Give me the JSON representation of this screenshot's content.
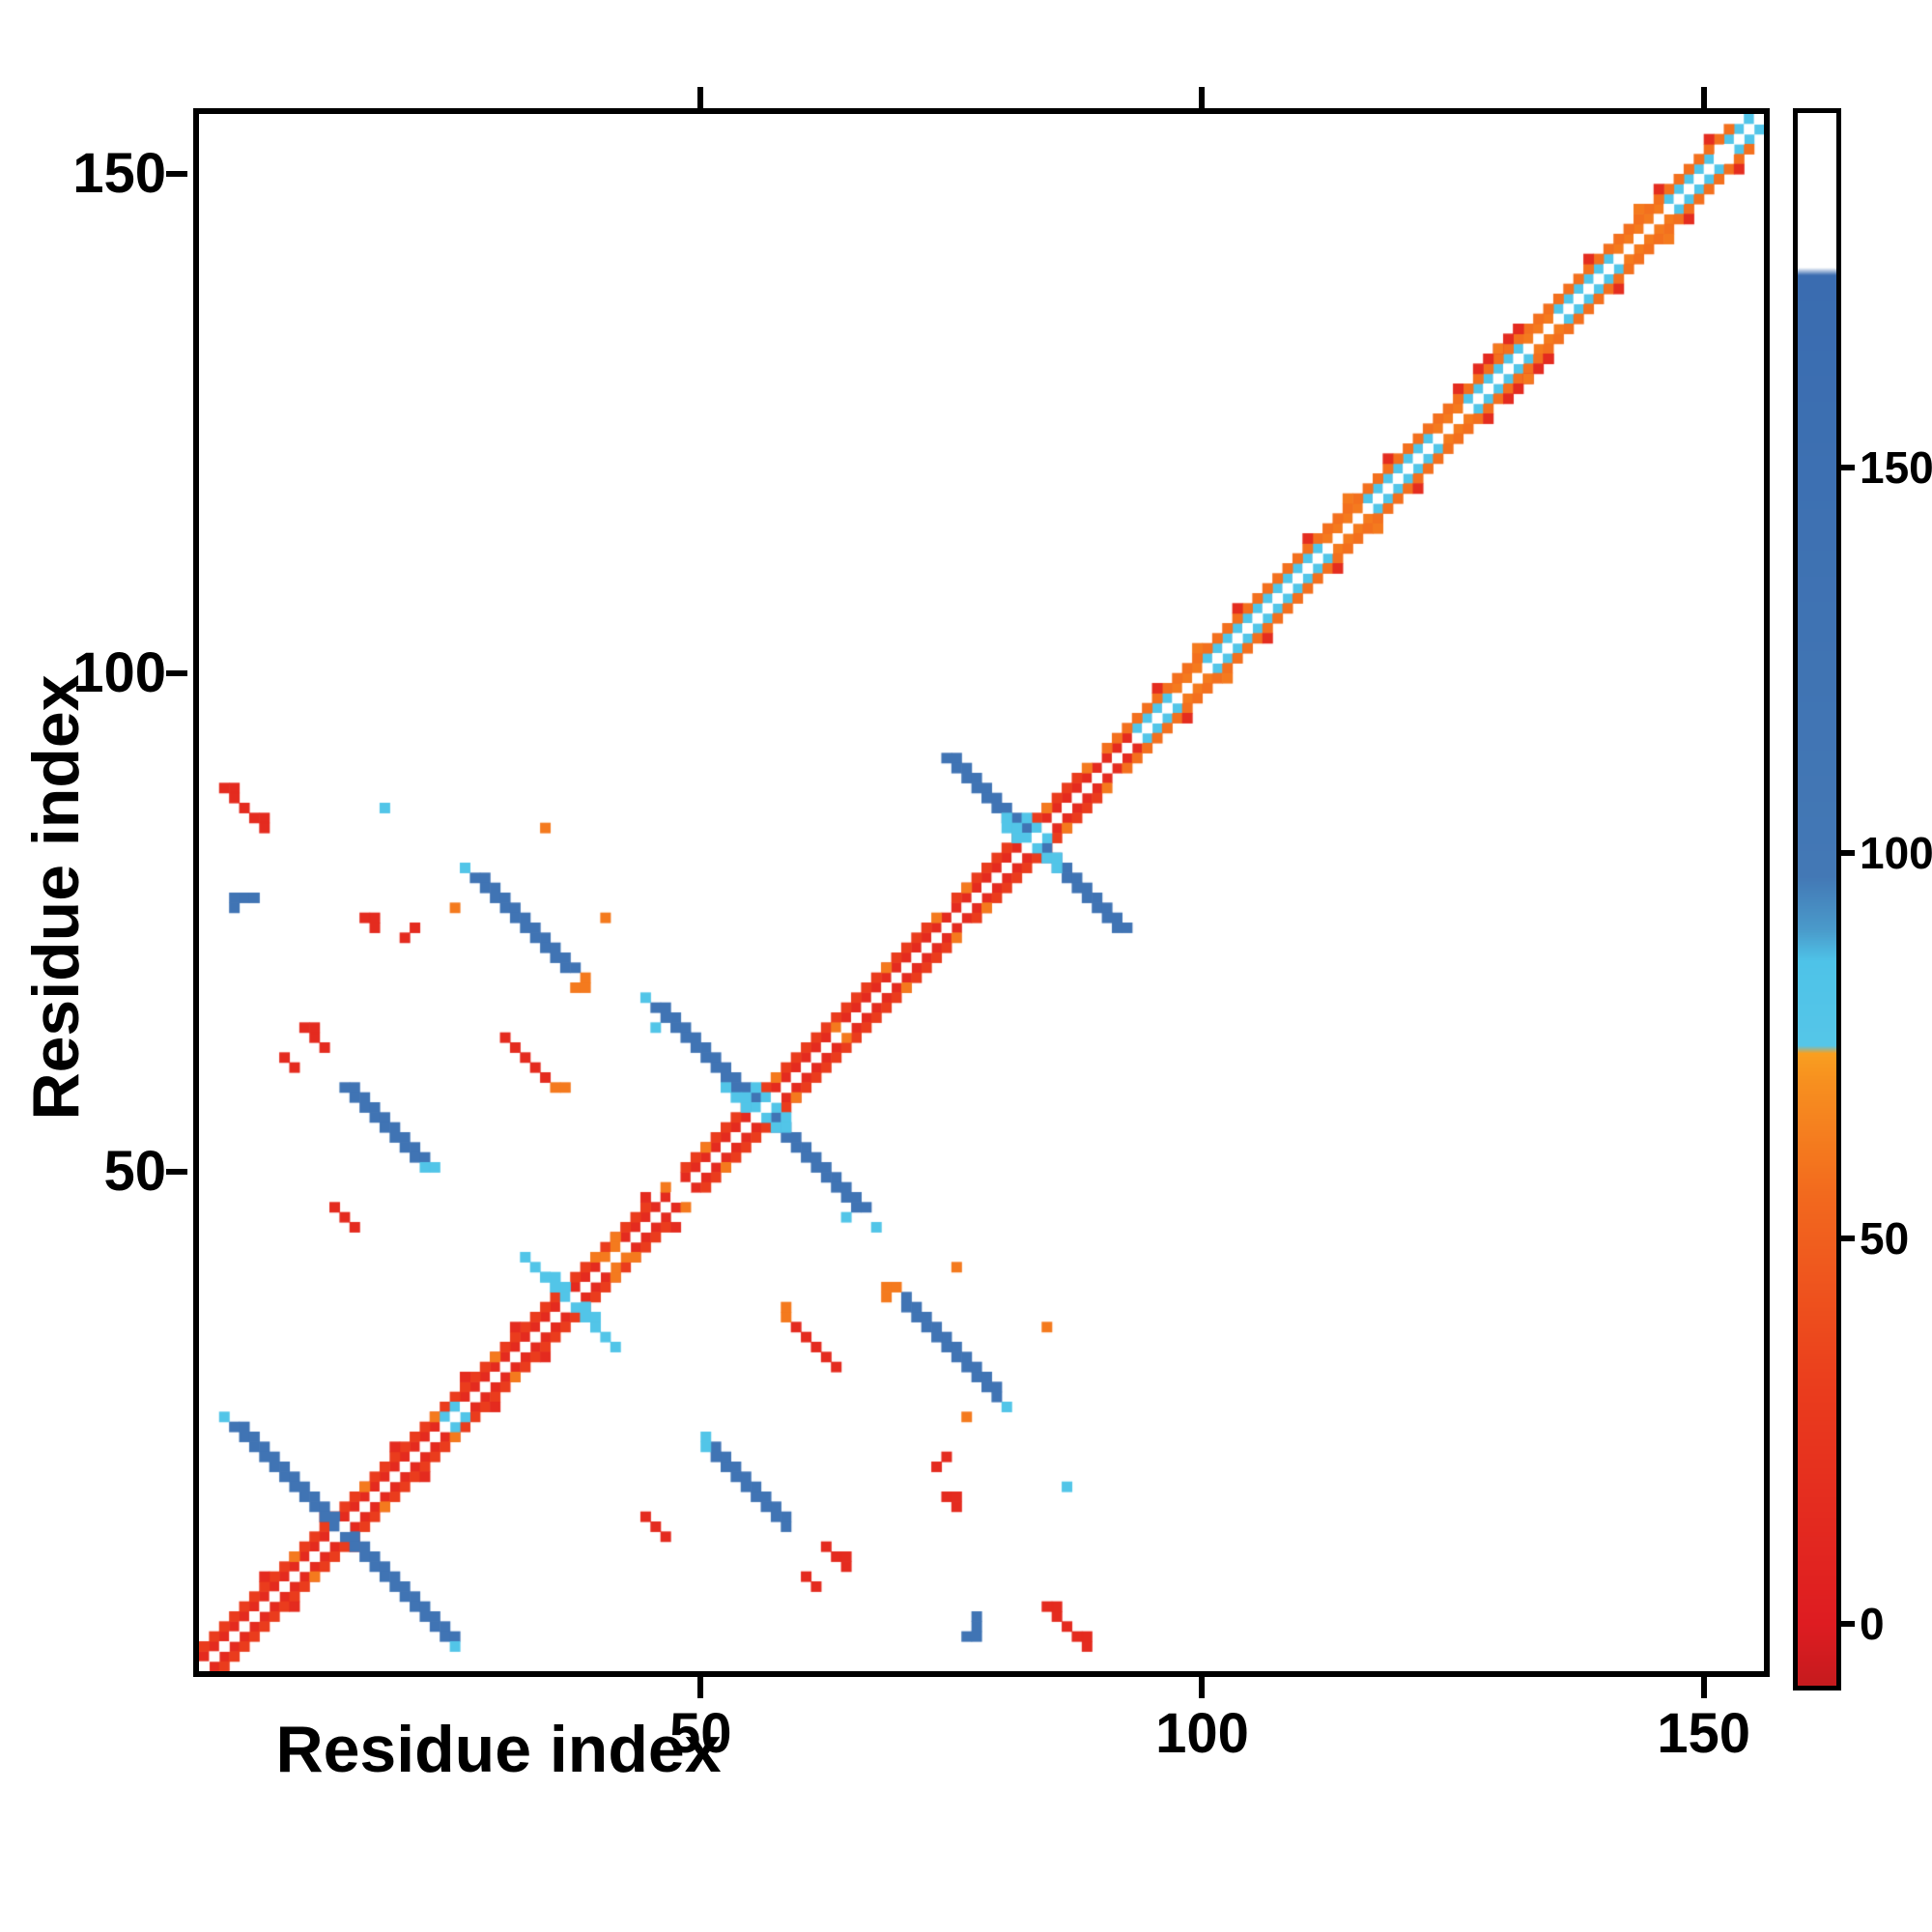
{
  "chart_data": {
    "type": "heatmap",
    "title": "",
    "xlabel": "Residue index",
    "ylabel": "Residue index",
    "n_residues": 156,
    "xlim": [
      0,
      156
    ],
    "ylim": [
      0,
      156
    ],
    "grid": false,
    "x_tick_values": [
      50,
      100,
      150
    ],
    "x_tick_labels": [
      "50",
      "100",
      "150"
    ],
    "y_tick_values": [
      50,
      100,
      150
    ],
    "y_tick_labels": [
      "50",
      "100",
      "150"
    ],
    "colorbar": {
      "position": "right",
      "tick_values": [
        0,
        50,
        100,
        150
      ],
      "tick_labels": [
        "0",
        "50",
        "100",
        "150"
      ],
      "vmin": -8,
      "vmax": 196
    },
    "colormap_stops": [
      [
        -8,
        "#c61b1e"
      ],
      [
        0,
        "#de1c21"
      ],
      [
        30,
        "#ea3c1d"
      ],
      [
        55,
        "#f2681e"
      ],
      [
        70,
        "#f78f1f"
      ],
      [
        74,
        "#f99f20"
      ],
      [
        75,
        "#55c6e8"
      ],
      [
        86,
        "#4ec3e8"
      ],
      [
        90,
        "#4a9bcb"
      ],
      [
        97,
        "#4378b5"
      ],
      [
        175,
        "#3a6cb0"
      ],
      [
        176,
        "#ffffff"
      ],
      [
        196,
        "#ffffff"
      ]
    ],
    "features": [
      {
        "kind": "seg",
        "x": 0,
        "y": 1,
        "dx": 1,
        "dy": 1,
        "n": 47,
        "t": 1,
        "v": 14,
        "mirror": true
      },
      {
        "kind": "seg",
        "x": 0,
        "y": 2,
        "dx": 1,
        "dy": 1,
        "n": 45,
        "t": 1,
        "v": 30,
        "mirror": true
      },
      {
        "kind": "cells",
        "v": 14,
        "mirror": true,
        "pts": [
          [
            6,
            9
          ],
          [
            12,
            15
          ],
          [
            19,
            22
          ],
          [
            26,
            29
          ],
          [
            31,
            34
          ],
          [
            44,
            47
          ]
        ]
      },
      {
        "kind": "cells",
        "v": 62,
        "mirror": true,
        "pts": [
          [
            9,
            11
          ],
          [
            16,
            18
          ],
          [
            23,
            25
          ],
          [
            29,
            31
          ],
          [
            41,
            43
          ],
          [
            46,
            48
          ]
        ]
      },
      {
        "kind": "seg",
        "x": 3,
        "y": 24,
        "dx": 1,
        "dy": -1,
        "n": 22,
        "t": 2,
        "v": 120,
        "mirror": false
      },
      {
        "kind": "cells",
        "v": 80,
        "mirror": true,
        "pts": [
          [
            2,
            25
          ],
          [
            24,
            25
          ],
          [
            25,
            26
          ]
        ]
      },
      {
        "kind": "seg",
        "x": 48,
        "y": 49,
        "dx": 1,
        "dy": 1,
        "n": 27,
        "t": 1,
        "v": 14,
        "mirror": true
      },
      {
        "kind": "seg",
        "x": 48,
        "y": 50,
        "dx": 1,
        "dy": 1,
        "n": 25,
        "t": 1,
        "v": 30,
        "mirror": true
      },
      {
        "kind": "cells",
        "v": 62,
        "mirror": true,
        "pts": [
          [
            50,
            52
          ],
          [
            57,
            59
          ],
          [
            63,
            64
          ],
          [
            68,
            70
          ],
          [
            73,
            75
          ]
        ]
      },
      {
        "kind": "seg",
        "x": 45,
        "y": 66,
        "dx": 1,
        "dy": -1,
        "n": 21,
        "t": 2,
        "v": 120,
        "mirror": false
      },
      {
        "kind": "cells",
        "v": 80,
        "mirror": false,
        "pts": [
          [
            53,
            57
          ],
          [
            54,
            56
          ],
          [
            54,
            57
          ],
          [
            55,
            56
          ],
          [
            55,
            58
          ],
          [
            56,
            57
          ],
          [
            56,
            55
          ],
          [
            57,
            56
          ],
          [
            52,
            58
          ],
          [
            58,
            55
          ],
          [
            57,
            54
          ],
          [
            58,
            54
          ]
        ]
      },
      {
        "kind": "cells",
        "v": 80,
        "mirror": true,
        "pts": [
          [
            44,
            67
          ],
          [
            64,
            45
          ]
        ]
      },
      {
        "kind": "cells",
        "v": 80,
        "mirror": true,
        "pts": [
          [
            34,
            39
          ],
          [
            35,
            38
          ],
          [
            35,
            39
          ],
          [
            36,
            38
          ],
          [
            36,
            37
          ],
          [
            37,
            36
          ],
          [
            38,
            36
          ],
          [
            38,
            35
          ],
          [
            39,
            34
          ],
          [
            40,
            33
          ],
          [
            41,
            32
          ]
        ]
      },
      {
        "kind": "cells",
        "v": 62,
        "mirror": true,
        "pts": [
          [
            39,
            41
          ],
          [
            40,
            41
          ],
          [
            41,
            42
          ]
        ]
      },
      {
        "kind": "seg",
        "x": 75,
        "y": 76,
        "dx": 1,
        "dy": 1,
        "n": 15,
        "t": 1,
        "v": 14,
        "mirror": true
      },
      {
        "kind": "seg",
        "x": 75,
        "y": 77,
        "dx": 1,
        "dy": 1,
        "n": 13,
        "t": 1,
        "v": 30,
        "mirror": true
      },
      {
        "kind": "cells",
        "v": 62,
        "mirror": true,
        "pts": [
          [
            76,
            78
          ],
          [
            84,
            86
          ],
          [
            88,
            90
          ]
        ]
      },
      {
        "kind": "seg",
        "x": 74,
        "y": 91,
        "dx": 1,
        "dy": -1,
        "n": 18,
        "t": 2,
        "v": 120,
        "mirror": false
      },
      {
        "kind": "cells",
        "v": 80,
        "mirror": false,
        "pts": [
          [
            80,
            84
          ],
          [
            81,
            83
          ],
          [
            81,
            84
          ],
          [
            82,
            83
          ],
          [
            82,
            85
          ],
          [
            83,
            82
          ],
          [
            83,
            84
          ],
          [
            84,
            81
          ],
          [
            84,
            83
          ],
          [
            85,
            80
          ],
          [
            80,
            85
          ],
          [
            85,
            81
          ]
        ]
      },
      {
        "kind": "cells",
        "v": 14,
        "mirror": true,
        "pts": [
          [
            90,
            91
          ],
          [
            91,
            92
          ],
          [
            92,
            93
          ]
        ]
      },
      {
        "kind": "seg",
        "x": 93,
        "y": 94,
        "dx": 1,
        "dy": 1,
        "n": 4,
        "t": 1,
        "v": 80,
        "mirror": true
      },
      {
        "kind": "seg",
        "x": 100,
        "y": 101,
        "dx": 1,
        "dy": 1,
        "n": 12,
        "t": 1,
        "v": 80,
        "mirror": true
      },
      {
        "kind": "seg",
        "x": 116,
        "y": 117,
        "dx": 1,
        "dy": 1,
        "n": 7,
        "t": 1,
        "v": 80,
        "mirror": true
      },
      {
        "kind": "seg",
        "x": 126,
        "y": 127,
        "dx": 1,
        "dy": 1,
        "n": 6,
        "t": 1,
        "v": 80,
        "mirror": true
      },
      {
        "kind": "seg",
        "x": 135,
        "y": 136,
        "dx": 1,
        "dy": 1,
        "n": 7,
        "t": 1,
        "v": 80,
        "mirror": true
      },
      {
        "kind": "seg",
        "x": 146,
        "y": 147,
        "dx": 1,
        "dy": 1,
        "n": 5,
        "t": 1,
        "v": 80,
        "mirror": true
      },
      {
        "kind": "seg",
        "x": 152,
        "y": 153,
        "dx": 1,
        "dy": 1,
        "n": 3,
        "t": 1,
        "v": 80,
        "mirror": true
      },
      {
        "kind": "seg",
        "x": 97,
        "y": 98,
        "dx": 1,
        "dy": 1,
        "n": 3,
        "t": 1,
        "v": 62,
        "mirror": true
      },
      {
        "kind": "seg",
        "x": 112,
        "y": 113,
        "dx": 1,
        "dy": 1,
        "n": 4,
        "t": 1,
        "v": 62,
        "mirror": true
      },
      {
        "kind": "seg",
        "x": 123,
        "y": 124,
        "dx": 1,
        "dy": 1,
        "n": 3,
        "t": 1,
        "v": 62,
        "mirror": true
      },
      {
        "kind": "seg",
        "x": 132,
        "y": 133,
        "dx": 1,
        "dy": 1,
        "n": 3,
        "t": 1,
        "v": 62,
        "mirror": true
      },
      {
        "kind": "seg",
        "x": 141,
        "y": 142,
        "dx": 1,
        "dy": 1,
        "n": 5,
        "t": 1,
        "v": 62,
        "mirror": true
      },
      {
        "kind": "seg",
        "x": 90,
        "y": 92,
        "dx": 1,
        "dy": 1,
        "n": 63,
        "t": 1,
        "v": 58,
        "mirror": true
      },
      {
        "kind": "cells",
        "v": 16,
        "mirror": true,
        "pts": [
          [
            95,
            98
          ],
          [
            103,
            106
          ],
          [
            110,
            113
          ],
          [
            118,
            121
          ],
          [
            125,
            128
          ],
          [
            131,
            134
          ],
          [
            138,
            141
          ],
          [
            145,
            148
          ],
          [
            150,
            153
          ]
        ]
      },
      {
        "kind": "seg",
        "x": 127,
        "y": 130,
        "dx": 1,
        "dy": 1,
        "n": 5,
        "t": 1,
        "v": 14,
        "mirror": true
      },
      {
        "kind": "cells",
        "v": 62,
        "mirror": true,
        "pts": [
          [
            99,
            102
          ],
          [
            114,
            117
          ],
          [
            129,
            132
          ],
          [
            143,
            146
          ]
        ]
      },
      {
        "kind": "seg",
        "x": 27,
        "y": 79,
        "dx": 1,
        "dy": -1,
        "n": 10,
        "t": 2,
        "v": 120,
        "mirror": true
      },
      {
        "kind": "cells",
        "v": 62,
        "mirror": true,
        "pts": [
          [
            37,
            68
          ],
          [
            38,
            68
          ],
          [
            38,
            69
          ]
        ]
      },
      {
        "kind": "cells",
        "v": 80,
        "mirror": true,
        "pts": [
          [
            26,
            80
          ]
        ]
      },
      {
        "kind": "seg",
        "x": 14,
        "y": 58,
        "dx": 1,
        "dy": -1,
        "n": 8,
        "t": 2,
        "v": 120,
        "mirror": true
      },
      {
        "kind": "cells",
        "v": 80,
        "mirror": true,
        "pts": [
          [
            22,
            50
          ],
          [
            23,
            50
          ]
        ]
      },
      {
        "kind": "cells",
        "v": 14,
        "mirror": true,
        "pts": [
          [
            10,
            64
          ],
          [
            11,
            63
          ],
          [
            11,
            64
          ],
          [
            12,
            62
          ]
        ]
      },
      {
        "kind": "cells",
        "v": 14,
        "mirror": true,
        "pts": [
          [
            2,
            88
          ],
          [
            3,
            88
          ],
          [
            3,
            87
          ],
          [
            4,
            86
          ],
          [
            5,
            85
          ],
          [
            6,
            85
          ],
          [
            6,
            84
          ]
        ]
      },
      {
        "kind": "cells",
        "v": 120,
        "mirror": true,
        "pts": [
          [
            3,
            77
          ],
          [
            4,
            77
          ],
          [
            5,
            77
          ],
          [
            3,
            76
          ]
        ]
      },
      {
        "kind": "cells",
        "v": 14,
        "mirror": true,
        "pts": [
          [
            16,
            75
          ],
          [
            17,
            74
          ],
          [
            17,
            75
          ],
          [
            20,
            73
          ],
          [
            21,
            74
          ]
        ]
      },
      {
        "kind": "cells",
        "v": 62,
        "mirror": true,
        "pts": [
          [
            25,
            76
          ],
          [
            34,
            84
          ],
          [
            40,
            75
          ]
        ]
      },
      {
        "kind": "cells",
        "v": 80,
        "mirror": true,
        "pts": [
          [
            18,
            86
          ]
        ]
      },
      {
        "kind": "cells",
        "v": 14,
        "mirror": true,
        "pts": [
          [
            13,
            46
          ],
          [
            14,
            45
          ],
          [
            15,
            44
          ],
          [
            8,
            61
          ],
          [
            9,
            60
          ]
        ]
      },
      {
        "kind": "cells",
        "v": 14,
        "mirror": true,
        "pts": [
          [
            30,
            63
          ],
          [
            31,
            62
          ],
          [
            32,
            61
          ],
          [
            33,
            60
          ],
          [
            34,
            59
          ]
        ]
      },
      {
        "kind": "cells",
        "v": 62,
        "mirror": true,
        "pts": [
          [
            35,
            58
          ],
          [
            36,
            58
          ]
        ]
      },
      {
        "kind": "seg",
        "x": 0,
        "y": 0,
        "dx": 1,
        "dy": 1,
        "n": 156,
        "t": 1,
        "v": 190,
        "mirror": false
      }
    ]
  }
}
